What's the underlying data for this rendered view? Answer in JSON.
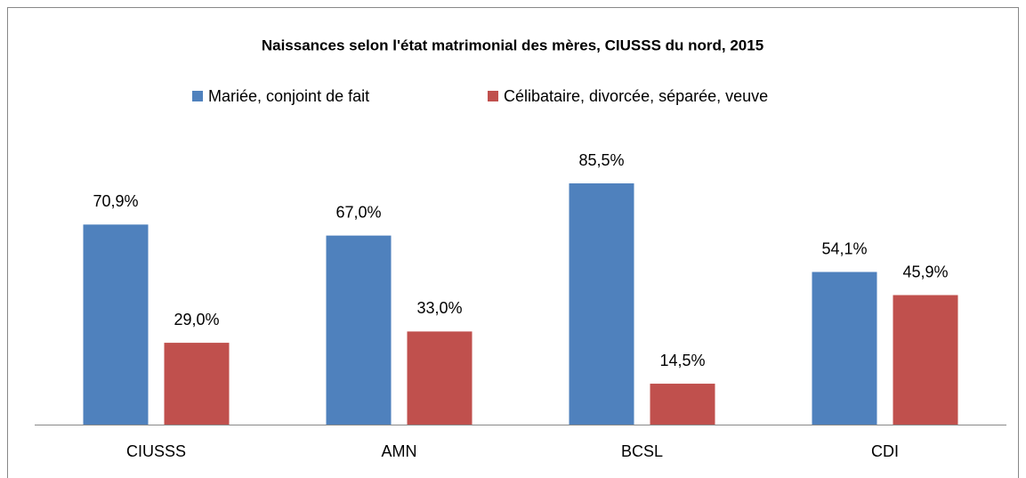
{
  "chart_data": {
    "type": "bar",
    "title": "Naissances selon l'état matrimonial des mères, CIUSSS du nord, 2015",
    "categories": [
      "CIUSSS",
      "AMN",
      "BCSL",
      "CDI"
    ],
    "series": [
      {
        "name": "Mariée, conjoint de fait",
        "color": "#4f81bd",
        "values": [
          70.9,
          67.0,
          85.5,
          54.1
        ],
        "value_labels": [
          "70,9%",
          "67,0%",
          "85,5%",
          "54,1%"
        ]
      },
      {
        "name": "Célibataire, divorcée, séparée, veuve",
        "color": "#c0504d",
        "values": [
          29.0,
          33.0,
          14.5,
          45.9
        ],
        "value_labels": [
          "29,0%",
          "33,0%",
          "14,5%",
          "45,9%"
        ]
      }
    ],
    "legend": "top"
  }
}
